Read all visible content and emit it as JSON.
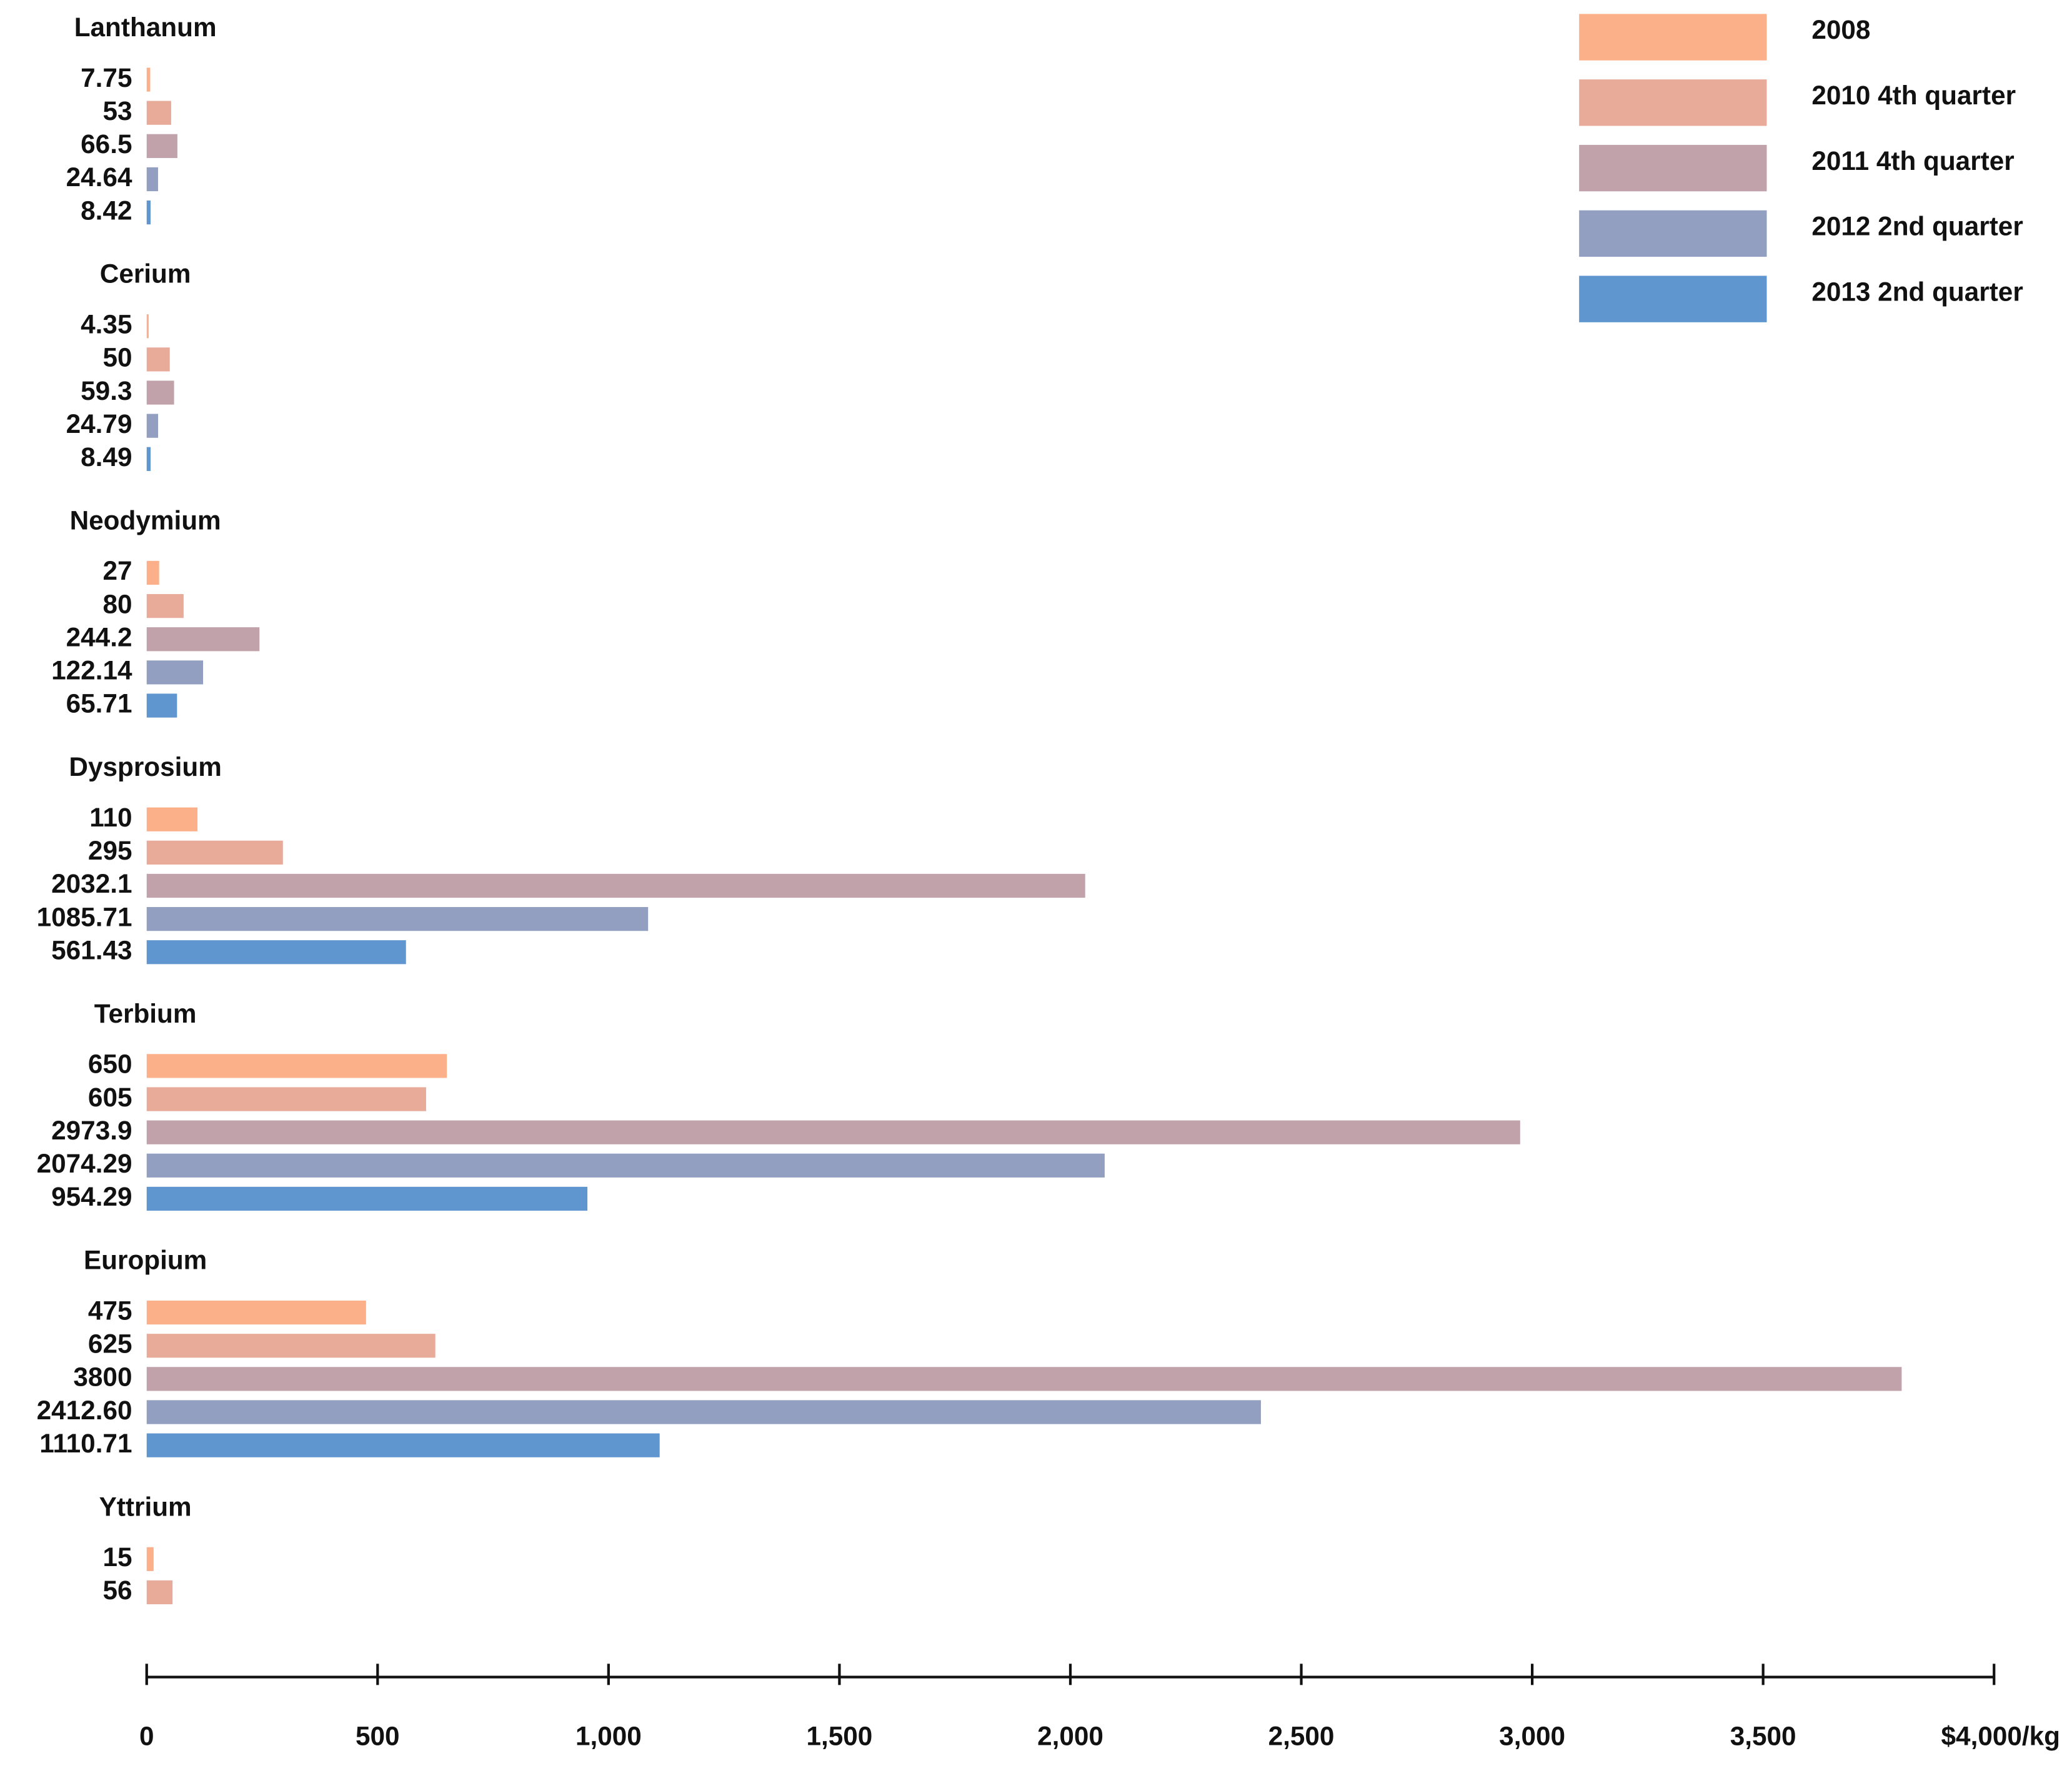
{
  "chart_data": {
    "type": "bar",
    "orientation": "horizontal",
    "categories": [
      "Lanthanum",
      "Cerium",
      "Neodymium",
      "Dysprosium",
      "Terbium",
      "Europium",
      "Yttrium"
    ],
    "series": [
      {
        "name": "2008",
        "color": "#fcb08a",
        "values": [
          7.75,
          4.35,
          27,
          110,
          650,
          475,
          15
        ]
      },
      {
        "name": "2010 4th quarter",
        "color": "#e8ab9a",
        "values": [
          53,
          50,
          80,
          295,
          605,
          625,
          56
        ]
      },
      {
        "name": "2011 4th quarter",
        "color": "#c1a2aa",
        "values": [
          66.5,
          59.3,
          244.2,
          2032.1,
          2973.9,
          3800,
          null
        ]
      },
      {
        "name": "2012 2nd quarter",
        "color": "#939fc0",
        "values": [
          24.64,
          24.79,
          122.14,
          1085.71,
          2074.29,
          2412.6,
          null
        ],
        "value_labels": [
          "24.64",
          "24.79",
          "122.14",
          "1085.71",
          "2074.29",
          "2412.60",
          null
        ]
      },
      {
        "name": "2013 2nd quarter",
        "color": "#5f96cf",
        "values": [
          8.42,
          8.49,
          65.71,
          561.43,
          954.29,
          1110.71,
          null
        ]
      }
    ],
    "xlim": [
      0,
      4000
    ],
    "xticks": [
      0,
      500,
      {
        "value": 1000,
        "label": "1,000"
      },
      {
        "value": 1500,
        "label": "1,500"
      },
      {
        "value": 2000,
        "label": "2,000"
      },
      {
        "value": 2500,
        "label": "2,500"
      },
      {
        "value": 3000,
        "label": "3,000"
      },
      {
        "value": 3500,
        "label": "3,500"
      },
      {
        "value": 4000,
        "label": "$4,000/kg"
      }
    ],
    "legend": "top-right"
  }
}
